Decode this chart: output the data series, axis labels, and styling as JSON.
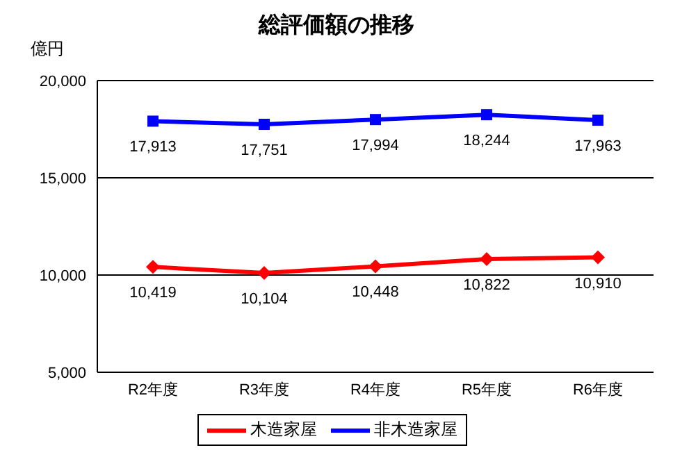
{
  "chart_data": {
    "type": "line",
    "title": "総評価額の推移",
    "ylabel": "億円",
    "categories": [
      "R2年度",
      "R3年度",
      "R4年度",
      "R5年度",
      "R6年度"
    ],
    "series": [
      {
        "name": "木造家屋",
        "color": "#ff0000",
        "marker": "diamond",
        "values": [
          10419,
          10104,
          10448,
          10822,
          10910
        ],
        "value_labels": [
          "10,419",
          "10,104",
          "10,448",
          "10,822",
          "10,910"
        ]
      },
      {
        "name": "非木造家屋",
        "color": "#0000ff",
        "marker": "square",
        "values": [
          17913,
          17751,
          17994,
          18244,
          17963
        ],
        "value_labels": [
          "17,913",
          "17,751",
          "17,994",
          "18,244",
          "17,963"
        ]
      }
    ],
    "ylim": [
      5000,
      20000
    ],
    "yticks": [
      {
        "value": 5000,
        "label": "5,000"
      },
      {
        "value": 10000,
        "label": "10,000"
      },
      {
        "value": 15000,
        "label": "15,000"
      },
      {
        "value": 20000,
        "label": "20,000"
      }
    ],
    "grid": "y",
    "legend": "bottom"
  }
}
